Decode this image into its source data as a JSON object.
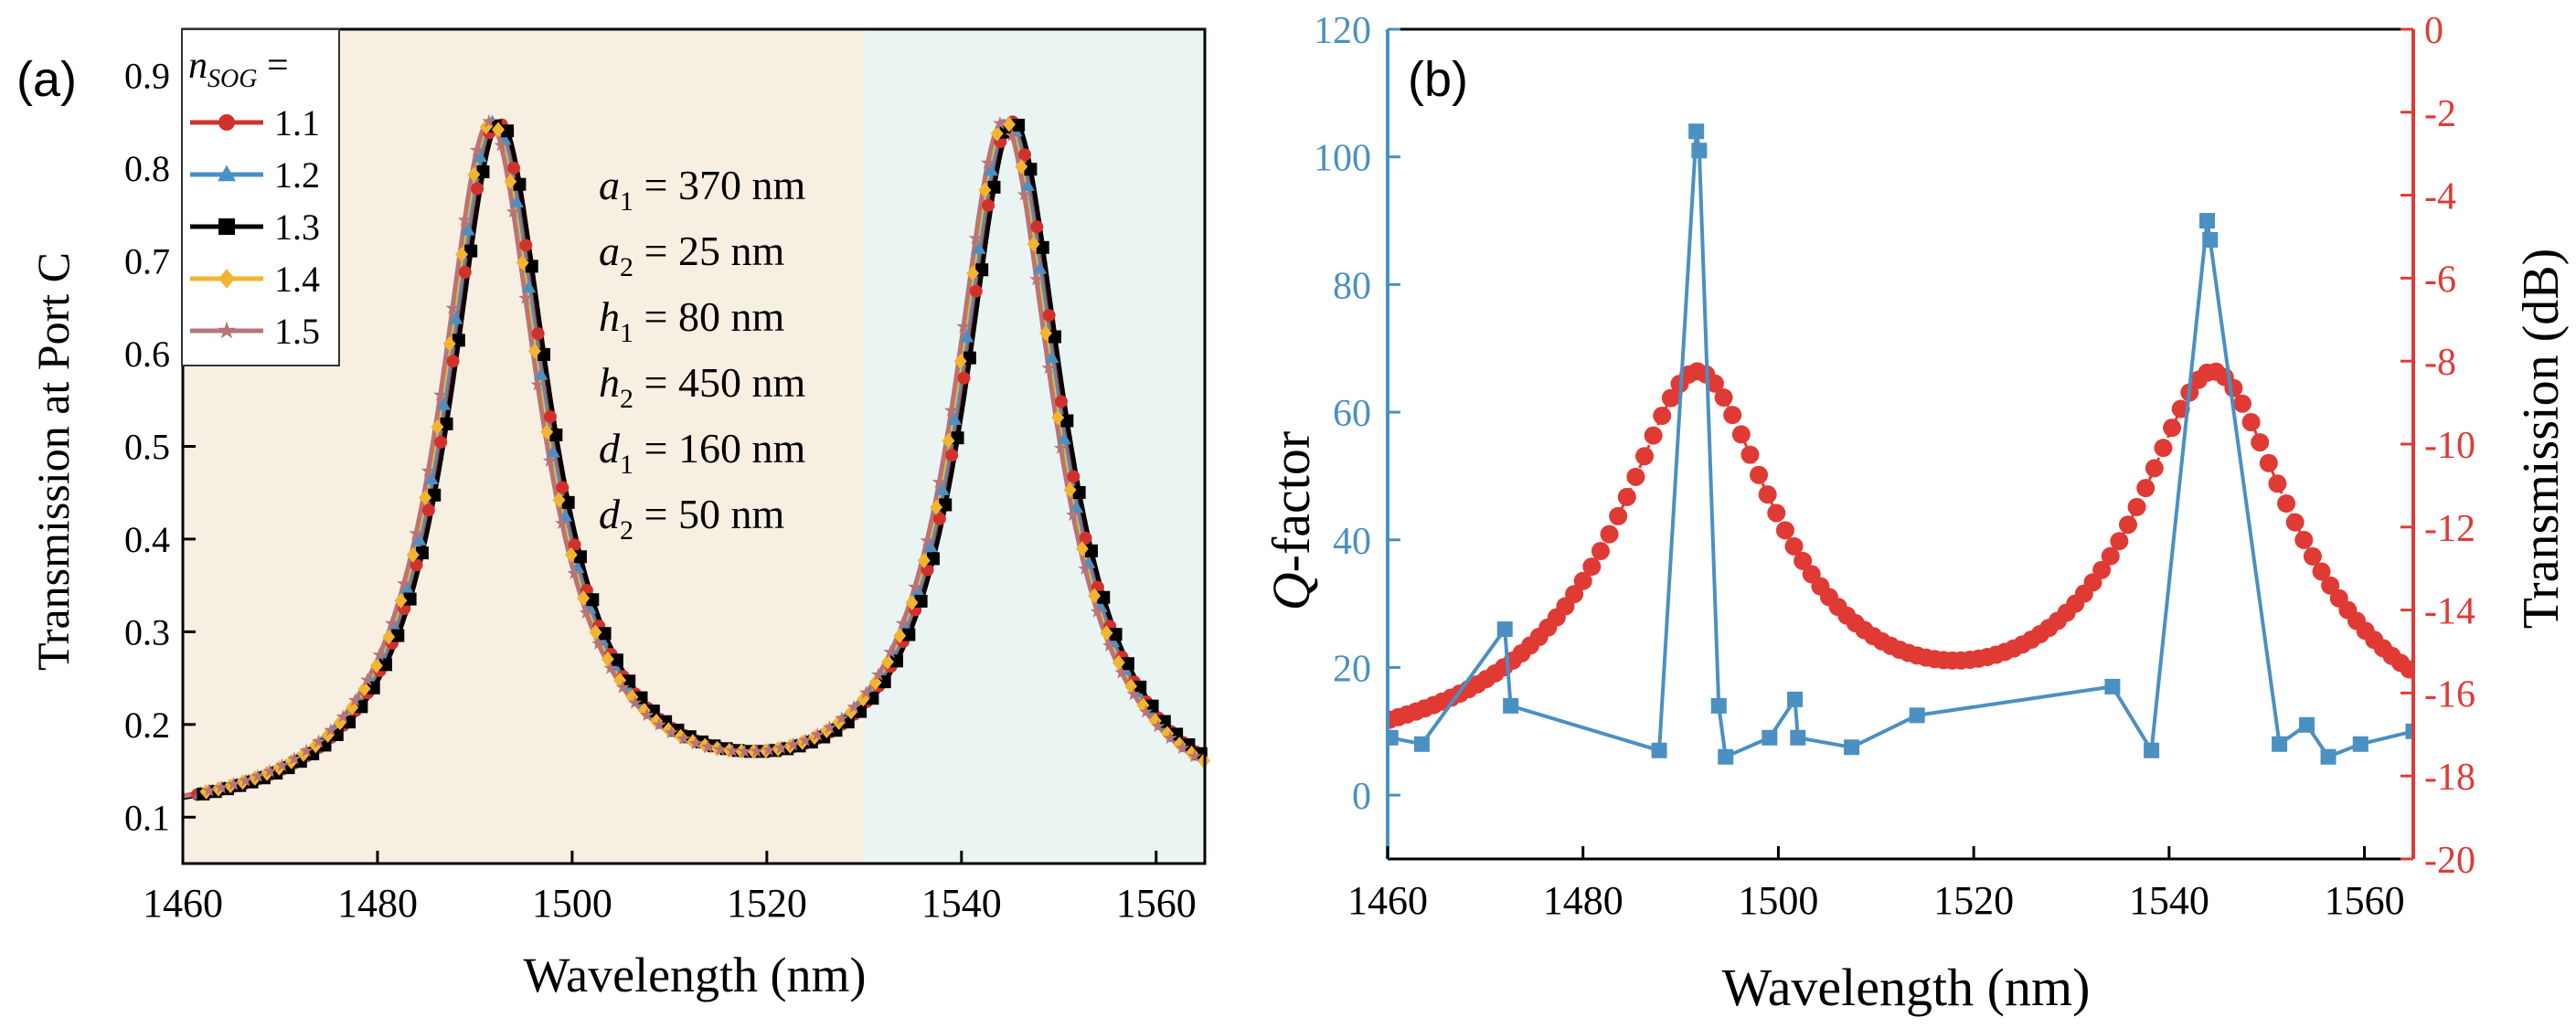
{
  "chart_data": [
    {
      "type": "line",
      "panel_label": "(a)",
      "xlabel": "Wavelength (nm)",
      "ylabel": "Transmission at Port C",
      "xlim": [
        1460,
        1565
      ],
      "ylim": [
        0.05,
        0.95
      ],
      "xticks": [
        1460,
        1480,
        1500,
        1520,
        1540,
        1560
      ],
      "yticks": [
        0.1,
        0.2,
        0.3,
        0.4,
        0.5,
        0.6,
        0.7,
        0.8,
        0.9
      ],
      "background_bands": [
        {
          "x_from": 1460,
          "x_to": 1530,
          "color": "#f7efe2"
        },
        {
          "x_from": 1530,
          "x_to": 1565,
          "color": "#eaf4f2"
        }
      ],
      "legend": {
        "title_prefix": "n",
        "title_sub": "SOG",
        "title_suffix": " =",
        "placement": "top-left"
      },
      "model": {
        "baseline": 0.09,
        "peak1_center": 1491.7,
        "peak2_center": 1544.5,
        "peak_amplitude": 0.75,
        "half_width": 6.3
      },
      "series": [
        {
          "name": "1.1",
          "color": "#d0312d",
          "marker": "circle",
          "shift": 0.6,
          "x_start": 1461.5,
          "x_step": 1.25
        },
        {
          "name": "1.2",
          "color": "#4a90c2",
          "marker": "triangle",
          "shift": 0.3,
          "x_start": 1461.8,
          "x_step": 1.25
        },
        {
          "name": "1.3",
          "color": "#000000",
          "marker": "square",
          "shift": 0.9,
          "x_start": 1462.1,
          "x_step": 1.25
        },
        {
          "name": "1.4",
          "color": "#f3b430",
          "marker": "diamond",
          "shift": 0.0,
          "x_start": 1462.4,
          "x_step": 1.25
        },
        {
          "name": "1.5",
          "color": "#b87478",
          "marker": "star",
          "shift": -0.2,
          "x_start": 1462.7,
          "x_step": 1.25
        }
      ],
      "annotations": [
        {
          "sym": "a",
          "sub": "1",
          "text": " = 370 nm"
        },
        {
          "sym": "a",
          "sub": "2",
          "text": " = 25 nm"
        },
        {
          "sym": "h",
          "sub": "1",
          "text": " = 80 nm"
        },
        {
          "sym": "h",
          "sub": "2",
          "text": " = 450 nm"
        },
        {
          "sym": "d",
          "sub": "1",
          "text": " = 160 nm"
        },
        {
          "sym": "d",
          "sub": "2",
          "text": " = 50 nm"
        }
      ]
    },
    {
      "type": "line",
      "panel_label": "(b)",
      "xlabel": "Wavelength (nm)",
      "ylabel_left_italic": "Q",
      "ylabel_left": "-factor",
      "ylabel_right": "Transmission (dB)",
      "xlim": [
        1460,
        1565
      ],
      "xticks": [
        1460,
        1480,
        1500,
        1520,
        1540,
        1560
      ],
      "ylim_left": [
        -10,
        120
      ],
      "yticks_left": [
        0,
        20,
        40,
        60,
        80,
        100,
        120
      ],
      "ylim_right": [
        -20,
        0
      ],
      "yticks_right": [
        -20,
        -18,
        -16,
        -14,
        -12,
        -10,
        -8,
        -6,
        -4,
        -2,
        0
      ],
      "left_axis_color": "#4a90c2",
      "right_axis_color": "#e03a35",
      "series": [
        {
          "name": "Q-factor",
          "axis": "left",
          "color": "#4a90c2",
          "marker": "square",
          "x": [
            1460.3,
            1463.5,
            1472.0,
            1472.6,
            1487.8,
            1491.6,
            1491.9,
            1493.9,
            1494.6,
            1499.1,
            1501.7,
            1502.0,
            1507.5,
            1514.2,
            1534.2,
            1538.2,
            1543.9,
            1544.2,
            1551.3,
            1554.1,
            1556.3,
            1559.6,
            1565.0
          ],
          "values": [
            9,
            8,
            26,
            14,
            7,
            104,
            101,
            14,
            6,
            9,
            15,
            9,
            7.5,
            12.5,
            17,
            7,
            90,
            87,
            8,
            11,
            6,
            8,
            10
          ]
        },
        {
          "name": "Transmission",
          "axis": "right",
          "color": "#e03a35",
          "marker": "circle",
          "line_style": "dashed",
          "x_start": 1460.2,
          "x_step": 0.9,
          "model": {
            "floor_db": -18.0,
            "baseline_lin": 0.09,
            "peak1_center": 1491.7,
            "peak2_center": 1544.5,
            "peak_amplitude": 0.75,
            "half_width": 6.3
          }
        }
      ]
    }
  ]
}
